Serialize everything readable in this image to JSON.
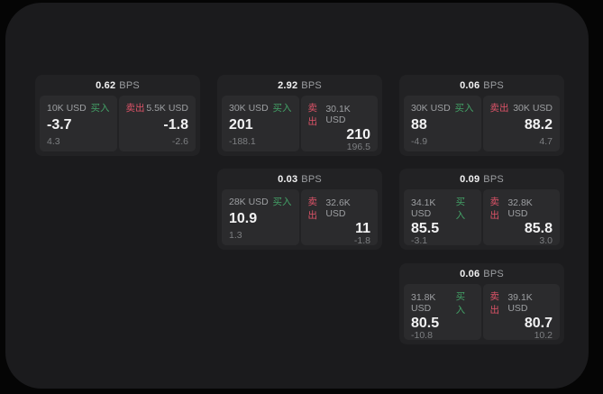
{
  "ui": {
    "bps_suffix": "BPS",
    "buy_label": "买入",
    "sell_label": "卖出"
  },
  "colors": {
    "backdrop": "#050505",
    "window_bg": "#1b1b1d",
    "card_bg": "#222224",
    "tile_bg": "#2b2b2d",
    "text_primary": "#f2f2f3",
    "text_secondary": "#9d9fa2",
    "text_muted": "#7d7f82",
    "buy_green": "#43a066",
    "sell_red": "#dd5368"
  },
  "cards": [
    {
      "bps": "0.62",
      "buy_size": "10K USD",
      "buy_price": "-3.7",
      "buy_change": "4.3",
      "sell_size": "5.5K USD",
      "sell_price": "-1.8",
      "sell_change": "-2.6"
    },
    {
      "bps": "2.92",
      "buy_size": "30K USD",
      "buy_price": "201",
      "buy_change": "-188.1",
      "sell_size": "30.1K USD",
      "sell_price": "210",
      "sell_change": "196.5"
    },
    {
      "bps": "0.06",
      "buy_size": "30K USD",
      "buy_price": "88",
      "buy_change": "-4.9",
      "sell_size": "30K USD",
      "sell_price": "88.2",
      "sell_change": "4.7"
    },
    {
      "bps": "0.03",
      "buy_size": "28K USD",
      "buy_price": "10.9",
      "buy_change": "1.3",
      "sell_size": "32.6K USD",
      "sell_price": "11",
      "sell_change": "-1.8"
    },
    {
      "bps": "0.09",
      "buy_size": "34.1K USD",
      "buy_price": "85.5",
      "buy_change": "-3.1",
      "sell_size": "32.8K USD",
      "sell_price": "85.8",
      "sell_change": "3.0"
    },
    {
      "bps": "0.06",
      "buy_size": "31.8K USD",
      "buy_price": "80.5",
      "buy_change": "-10.8",
      "sell_size": "39.1K USD",
      "sell_price": "80.7",
      "sell_change": "10.2"
    }
  ]
}
